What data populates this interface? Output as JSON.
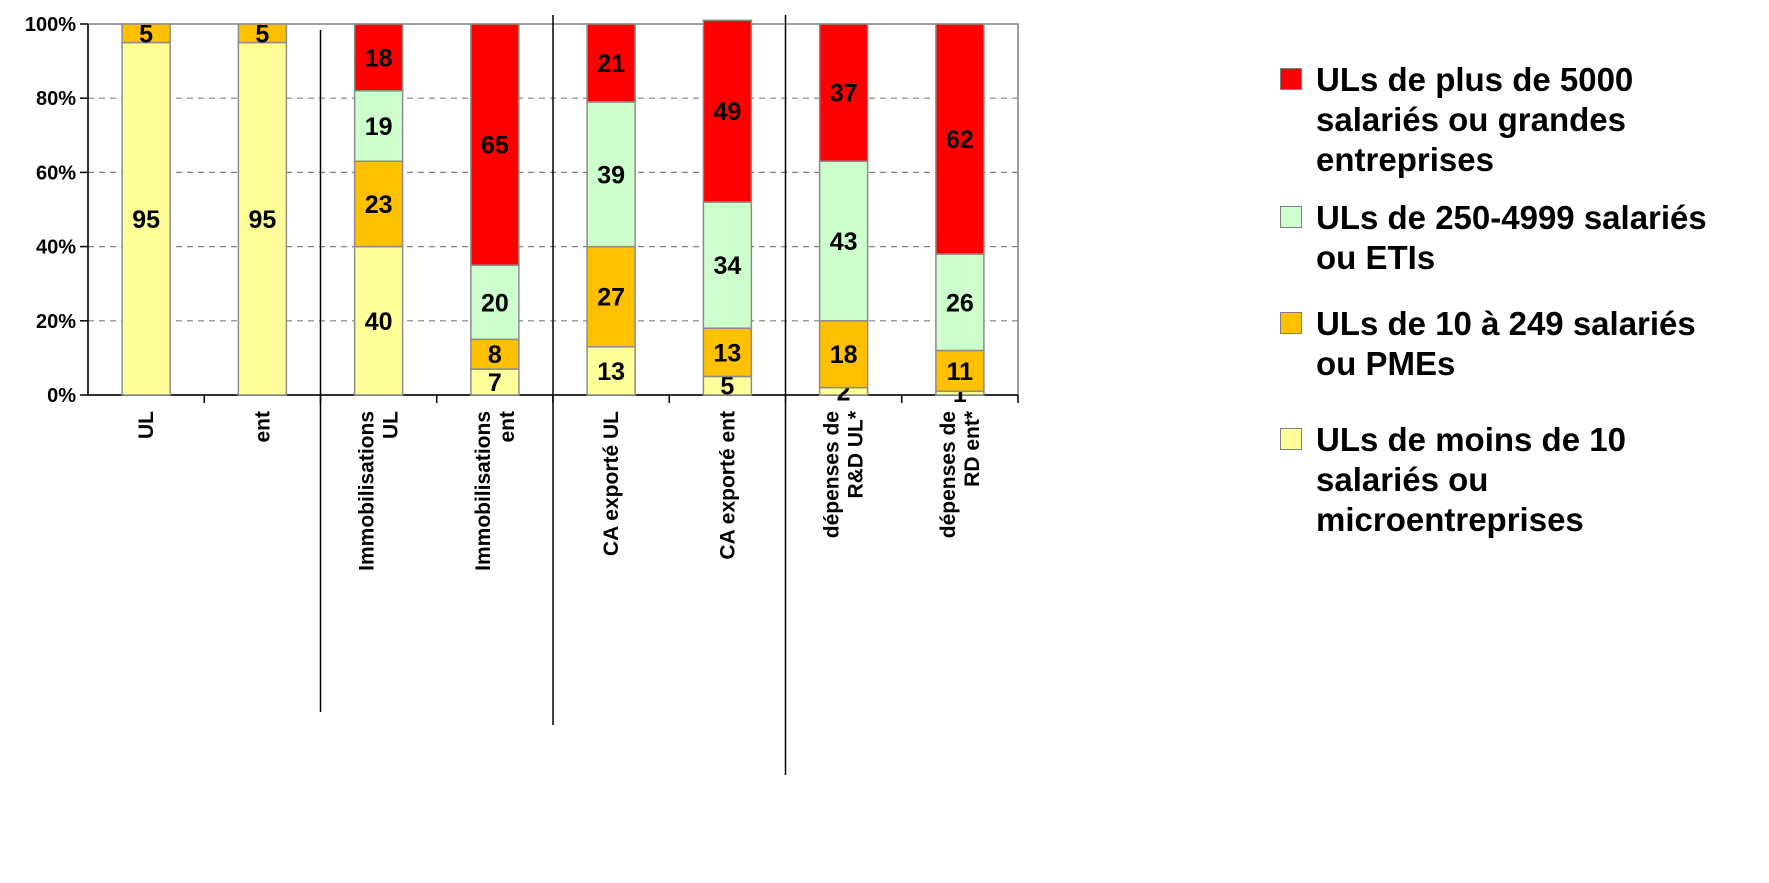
{
  "chart_data": {
    "type": "bar",
    "stacked": true,
    "percent": true,
    "categories": [
      [
        "UL"
      ],
      [
        "ent"
      ],
      [
        "Immobilisations",
        "UL"
      ],
      [
        "Immobilisations",
        "ent"
      ],
      [
        "CA exporté UL"
      ],
      [
        "CA exporté ent"
      ],
      [
        "dépenses de",
        "R&D UL*"
      ],
      [
        "dépenses de",
        "RD ent*"
      ]
    ],
    "series": [
      {
        "name": "ULs de moins de 10 salariés ou microentreprises",
        "color": "#FFFF99",
        "values": [
          95,
          95,
          40,
          7,
          13,
          5,
          2,
          1
        ]
      },
      {
        "name": "ULs de 10 à 249 salariés ou PMEs",
        "color": "#FFC000",
        "values": [
          5,
          5,
          23,
          8,
          27,
          13,
          18,
          11
        ]
      },
      {
        "name": "ULs de 250-4999 salariés ou ETIs",
        "color": "#CCFFCC",
        "values": [
          0,
          0,
          19,
          20,
          39,
          34,
          43,
          26
        ]
      },
      {
        "name": "ULs de plus de 5000 salariés ou grandes entreprises",
        "color": "#FF0000",
        "values": [
          0,
          0,
          18,
          65,
          21,
          49,
          37,
          62
        ]
      }
    ],
    "y_ticks": [
      "0%",
      "20%",
      "40%",
      "60%",
      "80%",
      "100%"
    ],
    "ylim": [
      0,
      100
    ],
    "grid": true,
    "legend_position": "right",
    "group_separators_after": [
      2,
      4,
      6
    ]
  },
  "legend": [
    {
      "color": "#FF0000",
      "lines": [
        "ULs de plus de 5000",
        "salariés ou grandes",
        "entreprises"
      ]
    },
    {
      "color": "#CCFFCC",
      "lines": [
        "ULs de 250-4999 salariés",
        "ou ETIs"
      ]
    },
    {
      "color": "#FFC000",
      "lines": [
        "ULs de 10 à 249 salariés",
        "ou PMEs"
      ]
    },
    {
      "color": "#FFFF99",
      "lines": [
        "ULs de moins de 10",
        "salariés ou",
        "microentreprises"
      ]
    }
  ]
}
